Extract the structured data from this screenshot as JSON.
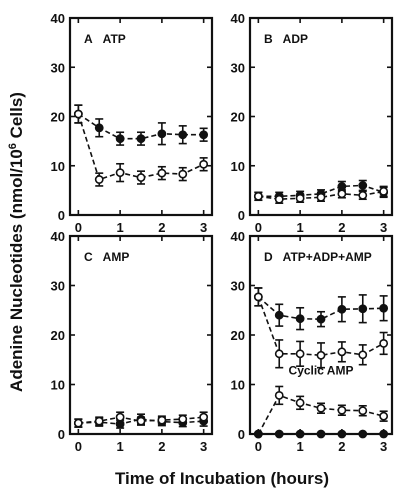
{
  "figure": {
    "ylabel": "Adenine Nucleotides (nmol/10",
    "ylabel_sup": "6",
    "ylabel_tail": " Cells)",
    "xlabel": "Time of Incubation (hours)"
  },
  "chart_data": [
    {
      "type": "line",
      "panel": "A",
      "title": "ATP",
      "x": [
        0,
        0.5,
        1,
        1.5,
        2,
        2.5,
        3
      ],
      "xlim": [
        -0.2,
        3.2
      ],
      "ylim": [
        0,
        40
      ],
      "xticks": [
        "0",
        "1",
        "2",
        "3"
      ],
      "yticks": [
        "0",
        "10",
        "20",
        "30",
        "40"
      ],
      "series": [
        {
          "marker": "filled",
          "values": [
            20.5,
            17.7,
            15.5,
            15.5,
            16.5,
            16.3,
            16.3
          ],
          "errors": [
            1.8,
            1.8,
            1.3,
            1.3,
            2.2,
            1.8,
            1.3
          ]
        },
        {
          "marker": "open",
          "values": [
            20.5,
            7.2,
            8.6,
            7.6,
            8.5,
            8.3,
            10.3
          ],
          "errors": [
            1.8,
            1.3,
            1.8,
            1.3,
            1.3,
            1.3,
            1.3
          ]
        }
      ]
    },
    {
      "type": "line",
      "panel": "B",
      "title": "ADP",
      "x": [
        0,
        0.5,
        1,
        1.5,
        2,
        2.5,
        3
      ],
      "xlim": [
        -0.2,
        3.2
      ],
      "ylim": [
        0,
        40
      ],
      "xticks": [
        "0",
        "1",
        "2",
        "3"
      ],
      "yticks": [
        "0",
        "10",
        "20",
        "30",
        "40"
      ],
      "series": [
        {
          "marker": "filled",
          "values": [
            3.8,
            3.8,
            4.0,
            4.3,
            5.8,
            6.0,
            4.6
          ],
          "errors": [
            0.8,
            0.8,
            0.8,
            0.8,
            1.0,
            1.0,
            1.0
          ]
        },
        {
          "marker": "open",
          "values": [
            3.8,
            3.2,
            3.4,
            3.6,
            4.3,
            4.0,
            4.8
          ],
          "errors": [
            0.8,
            0.8,
            0.8,
            0.8,
            0.8,
            0.8,
            1.0
          ]
        }
      ]
    },
    {
      "type": "line",
      "panel": "C",
      "title": "AMP",
      "x": [
        0,
        0.5,
        1,
        1.5,
        2,
        2.5,
        3
      ],
      "xlim": [
        -0.2,
        3.2
      ],
      "ylim": [
        0,
        40
      ],
      "xticks": [
        "0",
        "1",
        "2",
        "3"
      ],
      "yticks": [
        "0",
        "10",
        "20",
        "30",
        "40"
      ],
      "series": [
        {
          "marker": "filled",
          "values": [
            2.2,
            2.4,
            2.0,
            3.0,
            2.5,
            2.3,
            2.6
          ],
          "errors": [
            0.8,
            0.8,
            0.8,
            1.0,
            0.8,
            0.8,
            1.0
          ]
        },
        {
          "marker": "open",
          "values": [
            2.2,
            2.6,
            3.4,
            2.6,
            2.8,
            3.0,
            3.4
          ],
          "errors": [
            0.8,
            0.8,
            1.0,
            0.8,
            0.8,
            0.8,
            1.0
          ]
        }
      ]
    },
    {
      "type": "line",
      "panel": "D",
      "title": "ATP+ADP+AMP",
      "annotation": "Cyclic AMP",
      "x": [
        0,
        0.5,
        1,
        1.5,
        2,
        2.5,
        3
      ],
      "xlim": [
        -0.2,
        3.2
      ],
      "ylim": [
        0,
        40
      ],
      "xticks": [
        "0",
        "1",
        "2",
        "3"
      ],
      "yticks": [
        "0",
        "10",
        "20",
        "30",
        "40"
      ],
      "series": [
        {
          "marker": "filled",
          "values": [
            27.7,
            24.0,
            23.3,
            23.2,
            25.2,
            25.3,
            25.4
          ],
          "errors": [
            1.8,
            2.2,
            2.2,
            1.5,
            2.5,
            2.8,
            2.5
          ]
        },
        {
          "marker": "open",
          "values": [
            27.7,
            16.2,
            16.2,
            15.9,
            16.6,
            16.0,
            18.3
          ],
          "errors": [
            1.8,
            2.8,
            2.5,
            2.5,
            2.0,
            2.0,
            2.2
          ]
        },
        {
          "marker": "open",
          "values": [
            0.0,
            7.8,
            6.3,
            5.2,
            4.8,
            4.7,
            3.6
          ],
          "errors": [
            0.0,
            1.8,
            1.3,
            1.0,
            1.0,
            1.0,
            1.0
          ]
        },
        {
          "marker": "filled",
          "values": [
            0.0,
            0.0,
            0.0,
            0.0,
            0.0,
            0.0,
            0.0
          ],
          "errors": [
            0,
            0,
            0,
            0,
            0,
            0,
            0
          ]
        }
      ]
    }
  ]
}
